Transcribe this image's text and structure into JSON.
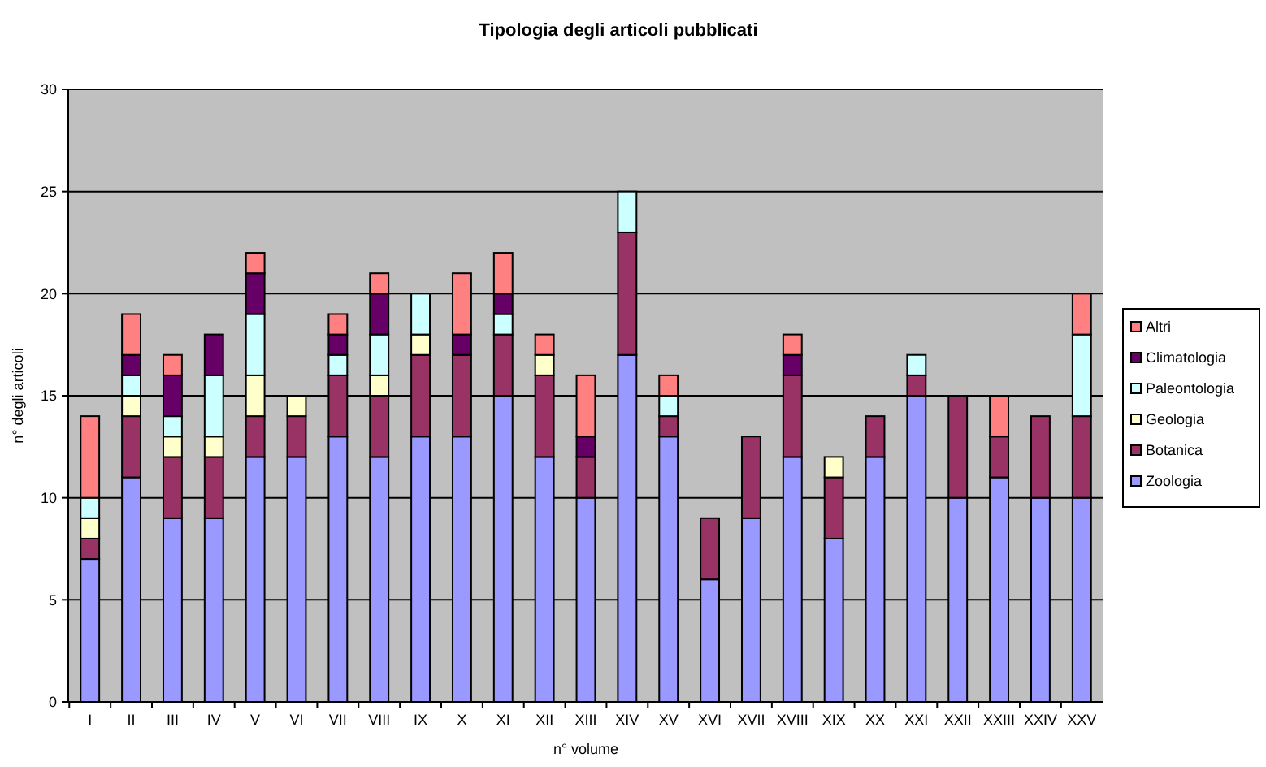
{
  "chart_data": {
    "type": "bar",
    "title": "Tipologia degli articoli pubblicati",
    "xlabel": "n° volume",
    "ylabel": "n° degli articoli",
    "stacked": true,
    "grid": "y",
    "legend": "right",
    "ylim": [
      0,
      30
    ],
    "yticks": [
      0,
      5,
      10,
      15,
      20,
      25,
      30
    ],
    "categories": [
      "I",
      "II",
      "III",
      "IV",
      "V",
      "VI",
      "VII",
      "VIII",
      "IX",
      "X",
      "XI",
      "XII",
      "XIII",
      "XIV",
      "XV",
      "XVI",
      "XVII",
      "XVIII",
      "XIX",
      "XX",
      "XXI",
      "XXII",
      "XXIII",
      "XXIV",
      "XXV"
    ],
    "series": [
      {
        "name": "Zoologia",
        "color": "#9999ff",
        "values": [
          7,
          11,
          9,
          9,
          12,
          12,
          13,
          12,
          13,
          13,
          15,
          12,
          10,
          17,
          13,
          6,
          9,
          12,
          8,
          12,
          15,
          10,
          11,
          10,
          10
        ]
      },
      {
        "name": "Botanica",
        "color": "#993366",
        "values": [
          1,
          3,
          3,
          3,
          2,
          2,
          3,
          3,
          4,
          4,
          3,
          4,
          2,
          6,
          1,
          3,
          4,
          4,
          3,
          2,
          1,
          5,
          2,
          4,
          4
        ]
      },
      {
        "name": "Geologia",
        "color": "#ffffcc",
        "values": [
          1,
          1,
          1,
          1,
          2,
          1,
          0,
          1,
          1,
          0,
          0,
          1,
          0,
          0,
          0,
          0,
          0,
          0,
          1,
          0,
          0,
          0,
          0,
          0,
          0
        ]
      },
      {
        "name": "Paleontologia",
        "color": "#ccffff",
        "values": [
          1,
          1,
          1,
          3,
          3,
          0,
          1,
          2,
          2,
          0,
          1,
          0,
          0,
          2,
          1,
          0,
          0,
          0,
          0,
          0,
          1,
          0,
          0,
          0,
          4
        ]
      },
      {
        "name": "Climatologia",
        "color": "#660066",
        "values": [
          0,
          1,
          2,
          2,
          2,
          0,
          1,
          2,
          0,
          1,
          1,
          0,
          1,
          0,
          0,
          0,
          0,
          1,
          0,
          0,
          0,
          0,
          0,
          0,
          0
        ]
      },
      {
        "name": "Altri",
        "color": "#ff8080",
        "values": [
          4,
          2,
          1,
          0,
          1,
          0,
          1,
          1,
          0,
          3,
          2,
          1,
          3,
          0,
          1,
          0,
          0,
          1,
          0,
          0,
          0,
          0,
          2,
          0,
          2
        ]
      }
    ]
  }
}
